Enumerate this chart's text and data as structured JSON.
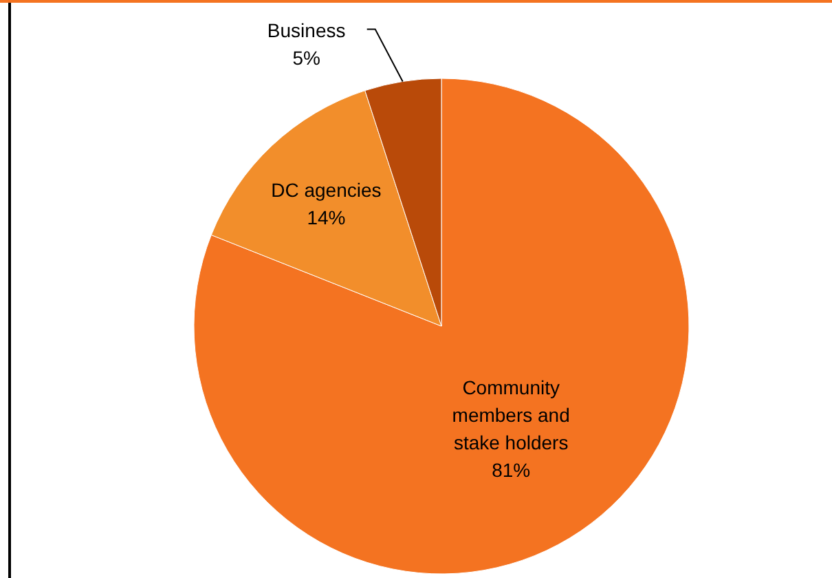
{
  "chart_data": {
    "type": "pie",
    "categories": [
      "Community members and stake holders",
      "DC agencies",
      "Business"
    ],
    "values": [
      81,
      14,
      5
    ],
    "colors": [
      "#f47321",
      "#f28e2b",
      "#b94a09"
    ],
    "value_labels": [
      "81%",
      "14%",
      "5%"
    ]
  }
}
